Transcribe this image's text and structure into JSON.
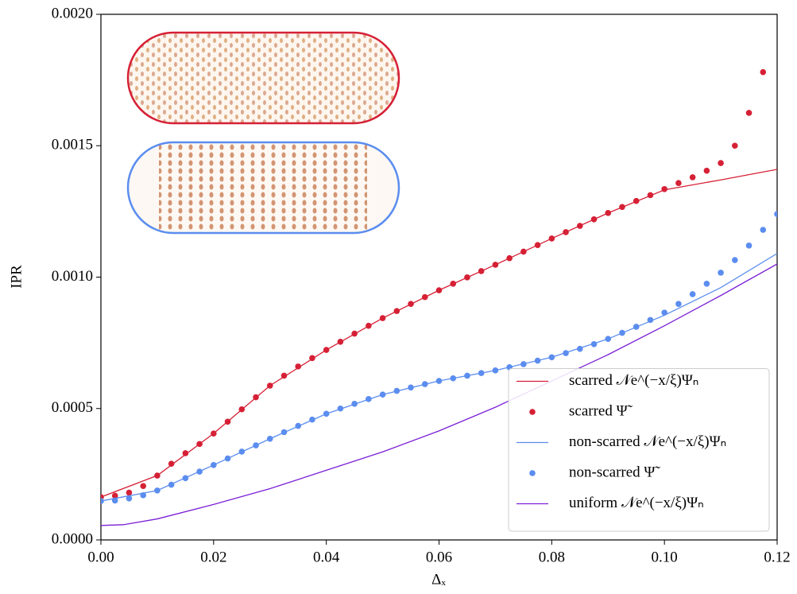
{
  "chart_data": {
    "type": "line",
    "xlabel": "Δₓ",
    "ylabel": "IPR",
    "xlim": [
      0,
      0.12
    ],
    "xticks": [
      {
        "value": 0,
        "label": "0.00"
      },
      {
        "value": 0.02,
        "label": "0.02"
      },
      {
        "value": 0.04,
        "label": "0.04"
      },
      {
        "value": 0.06,
        "label": "0.06"
      },
      {
        "value": 0.08,
        "label": "0.08"
      },
      {
        "value": 0.1,
        "label": "0.10"
      },
      {
        "value": 0.12,
        "label": "0.12"
      }
    ],
    "ylim": [
      0,
      0.002
    ],
    "yticks": [
      {
        "value": 0,
        "label": "0.0000"
      },
      {
        "value": 0.0005,
        "label": "0.0005"
      },
      {
        "value": 0.001,
        "label": "0.0010"
      },
      {
        "value": 0.0015,
        "label": "0.0015"
      },
      {
        "value": 0.002,
        "label": "0.0020"
      }
    ],
    "legend": "lower right",
    "series": [
      {
        "name": "scarred 𝒩e^(−x/ξ)Ψₙ",
        "color": "#d62035",
        "kind": "line",
        "x": [
          0,
          0.01,
          0.02,
          0.03,
          0.04,
          0.05,
          0.06,
          0.07,
          0.08,
          0.09,
          0.1,
          0.11,
          0.12
        ],
        "values": [
          0.000163,
          0.000245,
          0.000405,
          0.000587,
          0.000723,
          0.000844,
          0.00095,
          0.001047,
          0.001147,
          0.001244,
          0.001332,
          0.00137,
          0.00141
        ]
      },
      {
        "name": "scarred Ψ̃",
        "color": "#d62035",
        "kind": "scatter",
        "x": [
          0,
          0.0025,
          0.005,
          0.0075,
          0.01,
          0.0125,
          0.015,
          0.0175,
          0.02,
          0.0225,
          0.025,
          0.0275,
          0.03,
          0.0325,
          0.035,
          0.0375,
          0.04,
          0.0425,
          0.045,
          0.0475,
          0.05,
          0.0525,
          0.055,
          0.0575,
          0.06,
          0.0625,
          0.065,
          0.0675,
          0.07,
          0.0725,
          0.075,
          0.0775,
          0.08,
          0.0825,
          0.085,
          0.0875,
          0.09,
          0.0925,
          0.095,
          0.0975,
          0.1,
          0.1025,
          0.105,
          0.1075,
          0.11,
          0.1125,
          0.115,
          0.1175
        ],
        "values": [
          0.000163,
          0.000168,
          0.00018,
          0.000205,
          0.000245,
          0.00029,
          0.00033,
          0.000365,
          0.000405,
          0.00045,
          0.000497,
          0.000543,
          0.000587,
          0.000625,
          0.00066,
          0.000692,
          0.000723,
          0.000754,
          0.000785,
          0.000815,
          0.000844,
          0.000871,
          0.000898,
          0.000924,
          0.00095,
          0.000975,
          0.000999,
          0.001023,
          0.001047,
          0.001072,
          0.001097,
          0.001122,
          0.001147,
          0.001171,
          0.001195,
          0.00122,
          0.001244,
          0.001267,
          0.00129,
          0.001312,
          0.001335,
          0.001358,
          0.00138,
          0.001405,
          0.001434,
          0.0015,
          0.001625,
          0.00178
        ]
      },
      {
        "name": "non-scarred 𝒩e^(−x/ξ)Ψₙ",
        "color": "#5b8def",
        "kind": "line",
        "x": [
          0,
          0.01,
          0.02,
          0.03,
          0.04,
          0.05,
          0.06,
          0.07,
          0.08,
          0.09,
          0.1,
          0.11,
          0.12
        ],
        "values": [
          0.000148,
          0.000188,
          0.000285,
          0.000385,
          0.00048,
          0.000553,
          0.000605,
          0.000645,
          0.000695,
          0.000765,
          0.000855,
          0.00096,
          0.00109
        ]
      },
      {
        "name": "non-scarred Ψ̃",
        "color": "#5b8def",
        "kind": "scatter",
        "x": [
          0,
          0.0025,
          0.005,
          0.0075,
          0.01,
          0.0125,
          0.015,
          0.0175,
          0.02,
          0.0225,
          0.025,
          0.0275,
          0.03,
          0.0325,
          0.035,
          0.0375,
          0.04,
          0.0425,
          0.045,
          0.0475,
          0.05,
          0.0525,
          0.055,
          0.0575,
          0.06,
          0.0625,
          0.065,
          0.0675,
          0.07,
          0.0725,
          0.075,
          0.0775,
          0.08,
          0.0825,
          0.085,
          0.0875,
          0.09,
          0.0925,
          0.095,
          0.0975,
          0.1,
          0.1025,
          0.105,
          0.1075,
          0.11,
          0.1125,
          0.115,
          0.1175,
          0.12
        ],
        "values": [
          0.000148,
          0.00015,
          0.000158,
          0.00017,
          0.000188,
          0.00021,
          0.000235,
          0.00026,
          0.000285,
          0.00031,
          0.000336,
          0.00036,
          0.000385,
          0.00041,
          0.000434,
          0.000458,
          0.00048,
          0.0005,
          0.000518,
          0.000536,
          0.000553,
          0.000567,
          0.00058,
          0.000593,
          0.000605,
          0.000615,
          0.000625,
          0.000635,
          0.000645,
          0.000657,
          0.000669,
          0.000682,
          0.000695,
          0.000711,
          0.000727,
          0.000745,
          0.000765,
          0.000788,
          0.000811,
          0.000837,
          0.000865,
          0.000898,
          0.000935,
          0.000975,
          0.001017,
          0.001065,
          0.00112,
          0.00118,
          0.00124
        ]
      },
      {
        "name": "uniform 𝒩e^(−x/ξ)Ψₙ",
        "color": "#7b1fd6",
        "kind": "line",
        "x": [
          0,
          0.004,
          0.01,
          0.02,
          0.03,
          0.04,
          0.05,
          0.06,
          0.07,
          0.08,
          0.09,
          0.1,
          0.11,
          0.12
        ],
        "values": [
          5.5e-05,
          5.8e-05,
          8e-05,
          0.000135,
          0.000195,
          0.000265,
          0.000335,
          0.000415,
          0.000505,
          0.000605,
          0.000705,
          0.000815,
          0.00093,
          0.00105
        ]
      }
    ]
  }
}
